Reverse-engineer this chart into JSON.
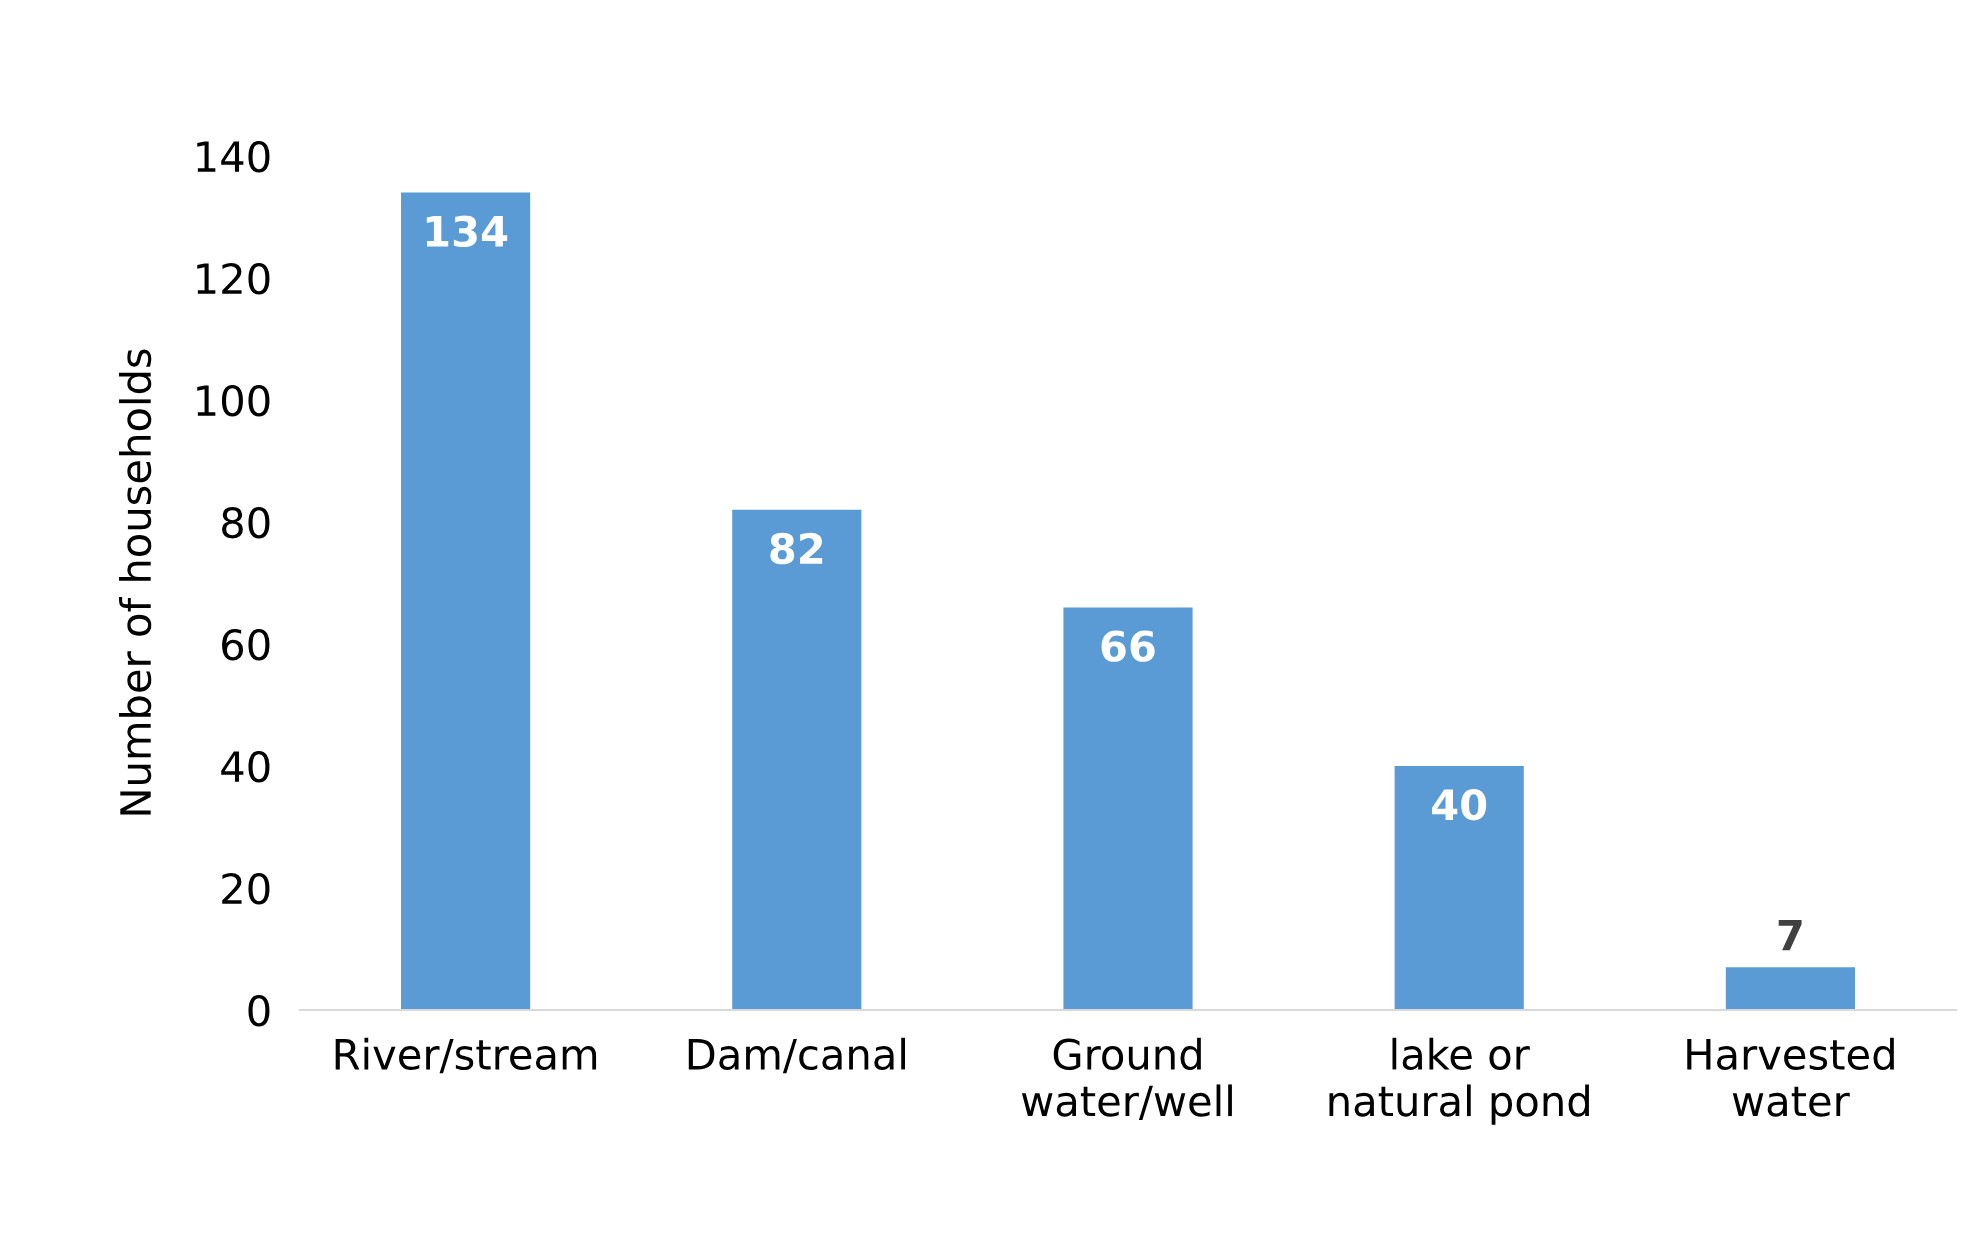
{
  "chart_data": {
    "type": "bar",
    "ylabel": "Number of households",
    "categories": [
      "River/stream",
      "Dam/canal",
      "Ground\nwater/well",
      "lake or\nnatural pond",
      "Harvested\nwater"
    ],
    "values": [
      134,
      82,
      66,
      40,
      7
    ],
    "color": "#5b9bd5",
    "ylim": [
      0,
      140
    ],
    "yticks": [
      0,
      20,
      40,
      60,
      80,
      100,
      120,
      140
    ],
    "grid": false,
    "data_labels": true
  }
}
